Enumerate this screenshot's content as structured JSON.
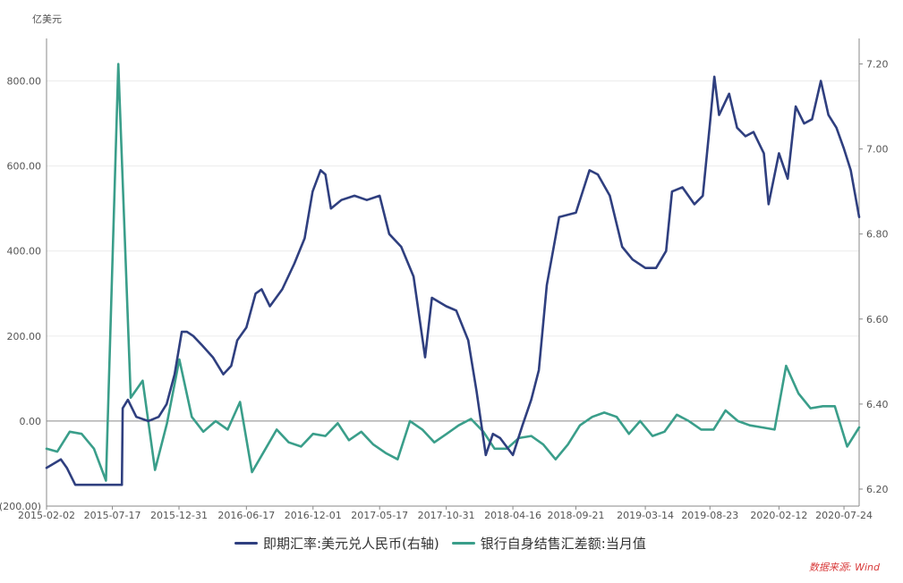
{
  "chart_data": {
    "type": "line",
    "y_unit_label": "亿美元",
    "x_ticks": [
      "2015-02-02",
      "2015-07-17",
      "2015-12-31",
      "2016-06-17",
      "2016-12-01",
      "2017-05-17",
      "2017-10-31",
      "2018-04-16",
      "2018-09-21",
      "2019-03-14",
      "2019-08-23",
      "2020-02-12",
      "2020-07-24"
    ],
    "x_range": [
      "2015-02-02",
      "2020-08-31"
    ],
    "left_axis": {
      "ticks": [
        "800.00",
        "600.00",
        "400.00",
        "200.00",
        "0.00",
        "(200.00)"
      ],
      "ylim": [
        -200,
        900
      ]
    },
    "right_axis": {
      "ticks": [
        "7.20",
        "7.00",
        "6.80",
        "6.60",
        "6.40",
        "6.20"
      ],
      "ylim": [
        6.16,
        7.26
      ]
    },
    "grid": true,
    "legend_position": "bottom",
    "series": [
      {
        "name": "即期汇率:美元兑人民币(右轴)",
        "axis": "right",
        "color": "#2f3f7f",
        "points": [
          [
            "2015-02-02",
            6.25
          ],
          [
            "2015-02-20",
            6.26
          ],
          [
            "2015-03-10",
            6.27
          ],
          [
            "2015-03-25",
            6.25
          ],
          [
            "2015-04-15",
            6.21
          ],
          [
            "2015-05-15",
            6.21
          ],
          [
            "2015-06-15",
            6.21
          ],
          [
            "2015-07-15",
            6.21
          ],
          [
            "2015-08-10",
            6.21
          ],
          [
            "2015-08-12",
            6.39
          ],
          [
            "2015-08-25",
            6.41
          ],
          [
            "2015-09-15",
            6.37
          ],
          [
            "2015-10-15",
            6.36
          ],
          [
            "2015-11-10",
            6.37
          ],
          [
            "2015-11-30",
            6.4
          ],
          [
            "2015-12-20",
            6.47
          ],
          [
            "2016-01-07",
            6.57
          ],
          [
            "2016-01-20",
            6.57
          ],
          [
            "2016-02-05",
            6.56
          ],
          [
            "2016-02-25",
            6.54
          ],
          [
            "2016-03-25",
            6.51
          ],
          [
            "2016-04-20",
            6.47
          ],
          [
            "2016-05-10",
            6.49
          ],
          [
            "2016-05-25",
            6.55
          ],
          [
            "2016-06-17",
            6.58
          ],
          [
            "2016-07-10",
            6.66
          ],
          [
            "2016-07-25",
            6.67
          ],
          [
            "2016-08-15",
            6.63
          ],
          [
            "2016-09-15",
            6.67
          ],
          [
            "2016-10-15",
            6.73
          ],
          [
            "2016-11-10",
            6.79
          ],
          [
            "2016-11-30",
            6.9
          ],
          [
            "2016-12-20",
            6.95
          ],
          [
            "2017-01-01",
            6.94
          ],
          [
            "2017-01-15",
            6.86
          ],
          [
            "2017-02-10",
            6.88
          ],
          [
            "2017-03-15",
            6.89
          ],
          [
            "2017-04-15",
            6.88
          ],
          [
            "2017-05-17",
            6.89
          ],
          [
            "2017-06-10",
            6.8
          ],
          [
            "2017-07-10",
            6.77
          ],
          [
            "2017-08-10",
            6.7
          ],
          [
            "2017-09-08",
            6.51
          ],
          [
            "2017-09-25",
            6.65
          ],
          [
            "2017-10-31",
            6.63
          ],
          [
            "2017-11-25",
            6.62
          ],
          [
            "2017-12-25",
            6.55
          ],
          [
            "2018-01-15",
            6.43
          ],
          [
            "2018-02-07",
            6.28
          ],
          [
            "2018-02-25",
            6.33
          ],
          [
            "2018-03-15",
            6.32
          ],
          [
            "2018-04-16",
            6.28
          ],
          [
            "2018-05-10",
            6.35
          ],
          [
            "2018-06-01",
            6.41
          ],
          [
            "2018-06-20",
            6.48
          ],
          [
            "2018-07-10",
            6.68
          ],
          [
            "2018-08-10",
            6.84
          ],
          [
            "2018-09-21",
            6.85
          ],
          [
            "2018-10-25",
            6.95
          ],
          [
            "2018-11-15",
            6.94
          ],
          [
            "2018-12-15",
            6.89
          ],
          [
            "2019-01-15",
            6.77
          ],
          [
            "2019-02-10",
            6.74
          ],
          [
            "2019-03-14",
            6.72
          ],
          [
            "2019-04-10",
            6.72
          ],
          [
            "2019-05-05",
            6.76
          ],
          [
            "2019-05-20",
            6.9
          ],
          [
            "2019-06-15",
            6.91
          ],
          [
            "2019-07-15",
            6.87
          ],
          [
            "2019-08-05",
            6.89
          ],
          [
            "2019-08-23",
            7.06
          ],
          [
            "2019-09-03",
            7.17
          ],
          [
            "2019-09-15",
            7.08
          ],
          [
            "2019-10-10",
            7.13
          ],
          [
            "2019-10-30",
            7.05
          ],
          [
            "2019-11-20",
            7.03
          ],
          [
            "2019-12-10",
            7.04
          ],
          [
            "2020-01-05",
            6.99
          ],
          [
            "2020-01-17",
            6.87
          ],
          [
            "2020-02-12",
            6.99
          ],
          [
            "2020-03-05",
            6.93
          ],
          [
            "2020-03-25",
            7.1
          ],
          [
            "2020-04-15",
            7.06
          ],
          [
            "2020-05-05",
            7.07
          ],
          [
            "2020-05-27",
            7.16
          ],
          [
            "2020-06-15",
            7.08
          ],
          [
            "2020-07-05",
            7.05
          ],
          [
            "2020-07-24",
            7.0
          ],
          [
            "2020-08-10",
            6.95
          ],
          [
            "2020-08-31",
            6.84
          ]
        ]
      },
      {
        "name": "银行自身结售汇差额:当月值",
        "axis": "left",
        "color": "#3a9e8a",
        "points": [
          [
            "2015-02-02",
            -65
          ],
          [
            "2015-03-01",
            -72
          ],
          [
            "2015-04-01",
            -25
          ],
          [
            "2015-05-01",
            -30
          ],
          [
            "2015-06-01",
            -65
          ],
          [
            "2015-07-01",
            -140
          ],
          [
            "2015-08-01",
            840
          ],
          [
            "2015-09-01",
            55
          ],
          [
            "2015-10-01",
            95
          ],
          [
            "2015-11-01",
            -115
          ],
          [
            "2015-12-01",
            -5
          ],
          [
            "2016-01-01",
            145
          ],
          [
            "2016-02-01",
            10
          ],
          [
            "2016-03-01",
            -25
          ],
          [
            "2016-04-01",
            0
          ],
          [
            "2016-05-01",
            -20
          ],
          [
            "2016-06-01",
            45
          ],
          [
            "2016-07-01",
            -120
          ],
          [
            "2016-08-01",
            -70
          ],
          [
            "2016-09-01",
            -20
          ],
          [
            "2016-10-01",
            -50
          ],
          [
            "2016-11-01",
            -60
          ],
          [
            "2016-12-01",
            -30
          ],
          [
            "2017-01-01",
            -35
          ],
          [
            "2017-02-01",
            -5
          ],
          [
            "2017-03-01",
            -45
          ],
          [
            "2017-04-01",
            -25
          ],
          [
            "2017-05-01",
            -55
          ],
          [
            "2017-06-01",
            -75
          ],
          [
            "2017-07-01",
            -90
          ],
          [
            "2017-08-01",
            0
          ],
          [
            "2017-09-01",
            -20
          ],
          [
            "2017-10-01",
            -50
          ],
          [
            "2017-11-01",
            -30
          ],
          [
            "2017-12-01",
            -10
          ],
          [
            "2018-01-01",
            5
          ],
          [
            "2018-02-01",
            -25
          ],
          [
            "2018-03-01",
            -65
          ],
          [
            "2018-04-01",
            -65
          ],
          [
            "2018-05-01",
            -40
          ],
          [
            "2018-06-01",
            -35
          ],
          [
            "2018-07-01",
            -55
          ],
          [
            "2018-08-01",
            -90
          ],
          [
            "2018-09-01",
            -55
          ],
          [
            "2018-10-01",
            -10
          ],
          [
            "2018-11-01",
            10
          ],
          [
            "2018-12-01",
            20
          ],
          [
            "2019-01-01",
            10
          ],
          [
            "2019-02-01",
            -30
          ],
          [
            "2019-03-01",
            0
          ],
          [
            "2019-04-01",
            -35
          ],
          [
            "2019-05-01",
            -25
          ],
          [
            "2019-06-01",
            15
          ],
          [
            "2019-07-01",
            0
          ],
          [
            "2019-08-01",
            -20
          ],
          [
            "2019-09-01",
            -20
          ],
          [
            "2019-10-01",
            25
          ],
          [
            "2019-11-01",
            0
          ],
          [
            "2019-12-01",
            -10
          ],
          [
            "2020-01-01",
            -15
          ],
          [
            "2020-02-01",
            -20
          ],
          [
            "2020-03-01",
            130
          ],
          [
            "2020-04-01",
            65
          ],
          [
            "2020-05-01",
            30
          ],
          [
            "2020-06-01",
            35
          ],
          [
            "2020-07-01",
            35
          ],
          [
            "2020-08-01",
            -60
          ],
          [
            "2020-08-31",
            -15
          ]
        ]
      }
    ]
  },
  "source_note": "数据来源: Wind"
}
